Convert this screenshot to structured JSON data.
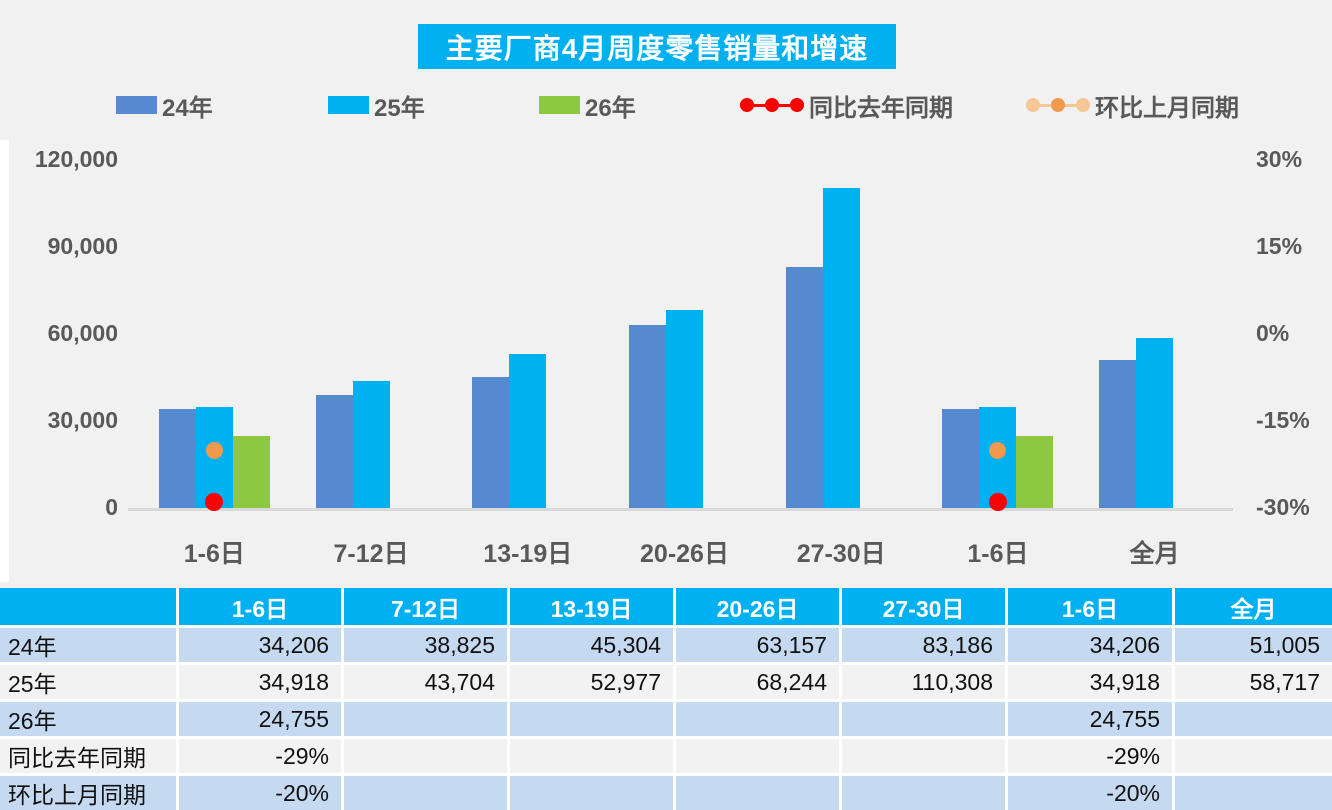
{
  "title": "主要厂商4月周度零售销量和增速",
  "colors": {
    "accent_cyan": "#00B0F0",
    "bar_24": "#5589D0",
    "bar_25": "#00B1F1",
    "bar_26": "#8CC841",
    "yoy_red": "#FE0000",
    "mom_orange": "#F09A4E",
    "mom_orange_light": "#F7C795",
    "table_row_blue": "#C5D9F1",
    "table_row_gray": "#F2F2F2",
    "axis_text": "#595959"
  },
  "legend": [
    {
      "label": "24年",
      "type": "swatch",
      "color": "#5589D0"
    },
    {
      "label": "25年",
      "type": "swatch",
      "color": "#00B1F1"
    },
    {
      "label": "26年",
      "type": "swatch",
      "color": "#8CC841"
    },
    {
      "label": "同比去年同期",
      "type": "dots",
      "line": "#FE0000",
      "dots": [
        "#FE0000",
        "#FE0000",
        "#FE0000"
      ]
    },
    {
      "label": "环比上月同期",
      "type": "dots",
      "line": "#F7C795",
      "dots": [
        "#F7C795",
        "#F09A4E",
        "#F7C795"
      ]
    }
  ],
  "chart_data": {
    "type": "bar",
    "subtype": "grouped bars + scatter dots, dual axis",
    "title": "主要厂商4月周度零售销量和增速",
    "categories": [
      "1-6日",
      "7-12日",
      "13-19日",
      "20-26日",
      "27-30日",
      "1-6日",
      "全月"
    ],
    "series": [
      {
        "name": "24年",
        "color": "#5589D0",
        "values": [
          34206,
          38825,
          45304,
          63157,
          83186,
          34206,
          51005
        ]
      },
      {
        "name": "25年",
        "color": "#00B1F1",
        "values": [
          34918,
          43704,
          52977,
          68244,
          110308,
          34918,
          58717
        ]
      },
      {
        "name": "26年",
        "color": "#8CC841",
        "values": [
          24755,
          null,
          null,
          null,
          null,
          24755,
          null
        ]
      }
    ],
    "scatter": [
      {
        "name": "同比去年同期",
        "color": "#FE0000",
        "size": 18,
        "values_pct": [
          -29,
          null,
          null,
          null,
          null,
          -29,
          null
        ]
      },
      {
        "name": "环比上月同期",
        "color": "#F09A4E",
        "size": 17,
        "values_pct": [
          -20,
          null,
          null,
          null,
          null,
          -20,
          null
        ]
      }
    ],
    "left_axis": {
      "ticks": [
        "120,000",
        "90,000",
        "60,000",
        "30,000",
        "0"
      ],
      "min": 0,
      "max": 120000
    },
    "right_axis": {
      "ticks": [
        "30%",
        "15%",
        "0%",
        "-15%",
        "-30%"
      ],
      "min": -30,
      "max": 30
    },
    "grid": false,
    "legend_position": "top"
  },
  "table": {
    "header": [
      "",
      "1-6日",
      "7-12日",
      "13-19日",
      "20-26日",
      "27-30日",
      "1-6日",
      "全月"
    ],
    "rows": [
      {
        "label": "24年",
        "cells": [
          "34,206",
          "38,825",
          "45,304",
          "63,157",
          "83,186",
          "34,206",
          "51,005"
        ]
      },
      {
        "label": "25年",
        "cells": [
          "34,918",
          "43,704",
          "52,977",
          "68,244",
          "110,308",
          "34,918",
          "58,717"
        ]
      },
      {
        "label": "26年",
        "cells": [
          "24,755",
          "",
          "",
          "",
          "",
          "24,755",
          ""
        ]
      },
      {
        "label": "同比去年同期",
        "cells": [
          "-29%",
          "",
          "",
          "",
          "",
          "-29%",
          ""
        ]
      },
      {
        "label": "环比上月同期",
        "cells": [
          "-20%",
          "",
          "",
          "",
          "",
          "-20%",
          ""
        ]
      }
    ]
  }
}
